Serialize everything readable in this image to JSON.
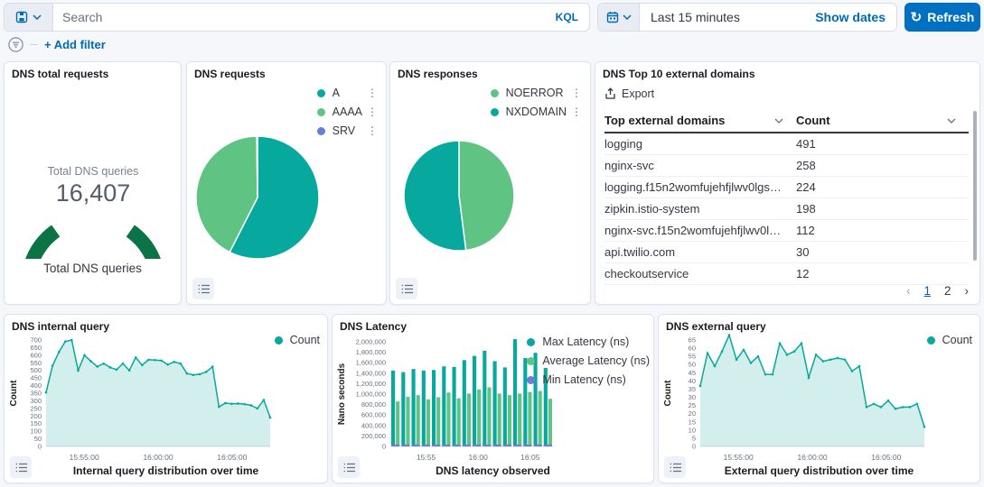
{
  "topbar": {
    "search_placeholder": "Search",
    "kql_label": "KQL",
    "time_range_label": "Last 15 minutes",
    "show_dates_label": "Show dates",
    "refresh_label": "Refresh"
  },
  "filter_bar": {
    "add_filter_label": "+ Add filter"
  },
  "colors": {
    "teal": "#07A89D",
    "green": "#5FC383",
    "purple": "#6B7DDB",
    "gauge_green": "#0B7446",
    "primary_blue": "#0071C2",
    "link_blue": "#006BB4"
  },
  "panels": {
    "gauge": {
      "title": "DNS total requests",
      "bottom_label": "Total DNS queries"
    },
    "requests": {
      "title": "DNS requests"
    },
    "responses": {
      "title": "DNS responses"
    },
    "top_domains": {
      "title": "DNS Top 10 external domains",
      "export_label": "Export",
      "columns": [
        "Top external domains",
        "Count"
      ],
      "rows": [
        {
          "domain": "logging",
          "count": "491"
        },
        {
          "domain": "nginx-svc",
          "count": "258"
        },
        {
          "domain": "logging.f15n2womfujehfjlwv0lgs3nog....",
          "count": "224"
        },
        {
          "domain": "zipkin.istio-system",
          "count": "198"
        },
        {
          "domain": "nginx-svc.f15n2womfujehfjlwv0lgs3no...",
          "count": "112"
        },
        {
          "domain": "api.twilio.com",
          "count": "30"
        },
        {
          "domain": "checkoutservice",
          "count": "12"
        }
      ],
      "pagination": {
        "pages": [
          "1",
          "2"
        ],
        "active": "1",
        "prev": "‹",
        "next": "›"
      }
    },
    "internal": {
      "title": "DNS internal query"
    },
    "latency": {
      "title": "DNS Latency"
    },
    "external": {
      "title": "DNS external query"
    }
  },
  "chart_data": [
    {
      "id": "gauge",
      "type": "gauge",
      "center_label": "Total DNS queries",
      "center_value": "16,407",
      "value": 16407,
      "color": "#0B7446"
    },
    {
      "id": "requests_pie",
      "type": "pie",
      "legend_position": "top-right",
      "slices": [
        {
          "label": "A",
          "value": 57.5,
          "color": "#07A89D"
        },
        {
          "label": "AAAA",
          "value": 42.3,
          "color": "#5FC383"
        },
        {
          "label": "SRV",
          "value": 0.2,
          "color": "#6B7DDB"
        }
      ]
    },
    {
      "id": "responses_pie",
      "type": "pie",
      "legend_position": "top-right",
      "slices": [
        {
          "label": "NOERROR",
          "value": 48,
          "color": "#5FC383"
        },
        {
          "label": "NXDOMAIN",
          "value": 52,
          "color": "#07A89D"
        }
      ]
    },
    {
      "id": "internal_area",
      "type": "area",
      "ylabel": "Count",
      "xlabel": "Internal query distribution over time",
      "ylim": [
        0,
        700
      ],
      "ytick": 50,
      "grid": false,
      "legend_position": "top-right",
      "legend": [
        {
          "label": "Count",
          "color": "#07A89D"
        }
      ],
      "xticks": [
        {
          "label": "15:55:00",
          "pos": 0.17
        },
        {
          "label": "16:00:00",
          "pos": 0.5
        },
        {
          "label": "16:05:00",
          "pos": 0.83
        }
      ],
      "values": [
        355,
        530,
        620,
        690,
        700,
        500,
        600,
        560,
        525,
        545,
        520,
        505,
        545,
        500,
        585,
        535,
        570,
        568,
        565,
        538,
        556,
        545,
        480,
        470,
        475,
        490,
        525,
        260,
        285,
        280,
        282,
        278,
        270,
        250,
        305,
        190
      ],
      "color": "#07A89D",
      "fill": "rgba(7,168,157,0.18)",
      "ml": 42
    },
    {
      "id": "latency_bars",
      "type": "bar",
      "ylabel": "Nano seconds",
      "xlabel": "DNS latency observed",
      "ylim": [
        0,
        2000000
      ],
      "ytick": 200000,
      "yformat": "comma",
      "grid": false,
      "legend_position": "right",
      "xticks": [
        {
          "label": "15:55",
          "pos": 0.22
        },
        {
          "label": "16:00",
          "pos": 0.54
        },
        {
          "label": "16:05",
          "pos": 0.86
        }
      ],
      "series": [
        {
          "name": "Max Latency (ns)",
          "color": "#07A89D",
          "values": [
            1450000,
            1420000,
            1480000,
            1450000,
            1460000,
            1530000,
            1520000,
            1650000,
            1730000,
            1830000,
            1630000,
            1510000,
            2050000,
            1690000,
            1790000,
            1500000
          ]
        },
        {
          "name": "Average Latency (ns)",
          "color": "#5FC383",
          "values": [
            860000,
            950000,
            980000,
            900000,
            940000,
            1030000,
            920000,
            1010000,
            1090000,
            1130000,
            1010000,
            980000,
            1010000,
            1040000,
            1060000,
            910000
          ]
        },
        {
          "name": "Min Latency (ns)",
          "color": "#6B7DDB",
          "values": [
            15000,
            15000,
            15000,
            15000,
            15000,
            15000,
            15000,
            15000,
            15000,
            15000,
            15000,
            15000,
            15000,
            15000,
            15000,
            15000
          ]
        }
      ],
      "ml": 60
    },
    {
      "id": "external_area",
      "type": "area",
      "ylabel": "Count",
      "xlabel": "External query distribution over time",
      "ylim": [
        0,
        65
      ],
      "ytick": 5,
      "grid": false,
      "legend_position": "top-right",
      "legend": [
        {
          "label": "Count",
          "color": "#07A89D"
        }
      ],
      "xticks": [
        {
          "label": "15:55:00",
          "pos": 0.17
        },
        {
          "label": "16:00:00",
          "pos": 0.5
        },
        {
          "label": "16:05:00",
          "pos": 0.83
        }
      ],
      "values": [
        37,
        57,
        49,
        58,
        68,
        53,
        59,
        51,
        55,
        44,
        44,
        63,
        56,
        58,
        63,
        42,
        56,
        52,
        53,
        54,
        53,
        46,
        49,
        24,
        26,
        24,
        28,
        23,
        24,
        24,
        26,
        12
      ],
      "color": "#07A89D",
      "fill": "rgba(7,168,157,0.18)",
      "ml": 42
    }
  ]
}
